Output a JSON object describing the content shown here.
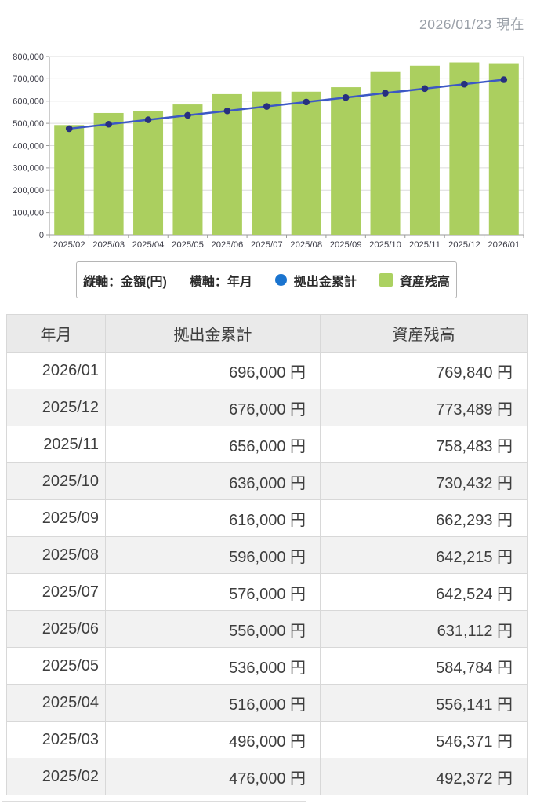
{
  "header": {
    "as_of": "2026/01/23 現在"
  },
  "chart_data": {
    "type": "bar",
    "subtype": "bar-line-combo",
    "categories": [
      "2025/02",
      "2025/03",
      "2025/04",
      "2025/05",
      "2025/06",
      "2025/07",
      "2025/08",
      "2025/09",
      "2025/10",
      "2025/11",
      "2025/12",
      "2026/01"
    ],
    "series": [
      {
        "name": "資産残高",
        "type": "bar",
        "color": "#abcf5f",
        "values": [
          492372,
          546371,
          556141,
          584784,
          631112,
          642524,
          642215,
          662293,
          730432,
          758483,
          773489,
          769840
        ]
      },
      {
        "name": "拠出金累計",
        "type": "line",
        "color": "#3c58c5",
        "marker_color": "#27307f",
        "values": [
          476000,
          496000,
          516000,
          536000,
          556000,
          576000,
          596000,
          616000,
          636000,
          656000,
          676000,
          696000
        ]
      }
    ],
    "title": "",
    "xlabel": "年月",
    "ylabel": "金額(円)",
    "ylim": [
      0,
      800000
    ],
    "ytick_interval": 100000,
    "grid": true,
    "legend_position": "bottom",
    "colors": {
      "grid": "#dcdcdc",
      "axis": "#9a9a9a",
      "right_border": "#c2c2c2",
      "tick_label": "#3b3b46"
    }
  },
  "legend": {
    "y_axis_note": "縦軸：金額(円)",
    "x_axis_note": "横軸：年月",
    "line_label": "拠出金累計",
    "bar_label": "資産残高",
    "line_swatch_color": "#1a74cf",
    "bar_swatch_color": "#abd161"
  },
  "table": {
    "columns": [
      "年月",
      "拠出金累計",
      "資産残高"
    ],
    "rows": [
      {
        "month": "2026/01",
        "contribution": "696,000 円",
        "balance": "769,840 円"
      },
      {
        "month": "2025/12",
        "contribution": "676,000 円",
        "balance": "773,489 円"
      },
      {
        "month": "2025/11",
        "contribution": "656,000 円",
        "balance": "758,483 円"
      },
      {
        "month": "2025/10",
        "contribution": "636,000 円",
        "balance": "730,432 円"
      },
      {
        "month": "2025/09",
        "contribution": "616,000 円",
        "balance": "662,293 円"
      },
      {
        "month": "2025/08",
        "contribution": "596,000 円",
        "balance": "642,215 円"
      },
      {
        "month": "2025/07",
        "contribution": "576,000 円",
        "balance": "642,524 円"
      },
      {
        "month": "2025/06",
        "contribution": "556,000 円",
        "balance": "631,112 円"
      },
      {
        "month": "2025/05",
        "contribution": "536,000 円",
        "balance": "584,784 円"
      },
      {
        "month": "2025/04",
        "contribution": "516,000 円",
        "balance": "556,141 円"
      },
      {
        "month": "2025/03",
        "contribution": "496,000 円",
        "balance": "546,371 円"
      },
      {
        "month": "2025/02",
        "contribution": "476,000 円",
        "balance": "492,372 円"
      }
    ]
  }
}
